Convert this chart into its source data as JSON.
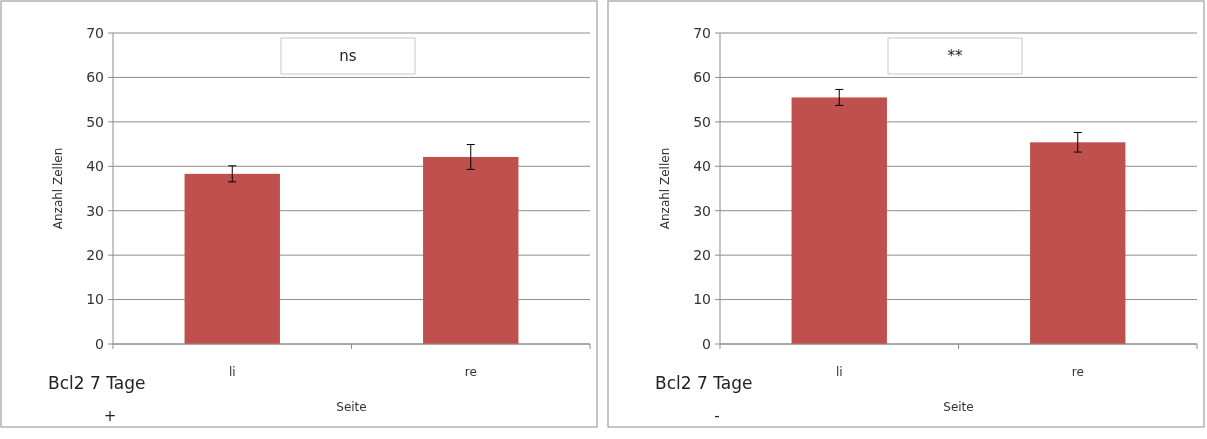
{
  "chart_data": [
    {
      "type": "bar",
      "categories": [
        "li",
        "re"
      ],
      "values": [
        38.3,
        42.1
      ],
      "errors": [
        1.8,
        2.8
      ],
      "color": "#c0504d",
      "ylim": [
        0,
        70
      ],
      "yticks": [
        0,
        10,
        20,
        30,
        40,
        50,
        60,
        70
      ],
      "grid": "y",
      "xlabel": "Seite",
      "ylabel": "Anzahl Zellen",
      "annotations": [
        "ns",
        "Bcl2 7 Tage",
        "+"
      ]
    },
    {
      "type": "bar",
      "categories": [
        "li",
        "re"
      ],
      "values": [
        55.5,
        45.4
      ],
      "errors": [
        1.8,
        2.2
      ],
      "color": "#c0504d",
      "ylim": [
        0,
        70
      ],
      "yticks": [
        0,
        10,
        20,
        30,
        40,
        50,
        60,
        70
      ],
      "grid": "y",
      "xlabel": "Seite",
      "ylabel": "Anzahl Zellen",
      "annotations": [
        "**",
        "Bcl2 7 Tage",
        "-"
      ]
    }
  ]
}
